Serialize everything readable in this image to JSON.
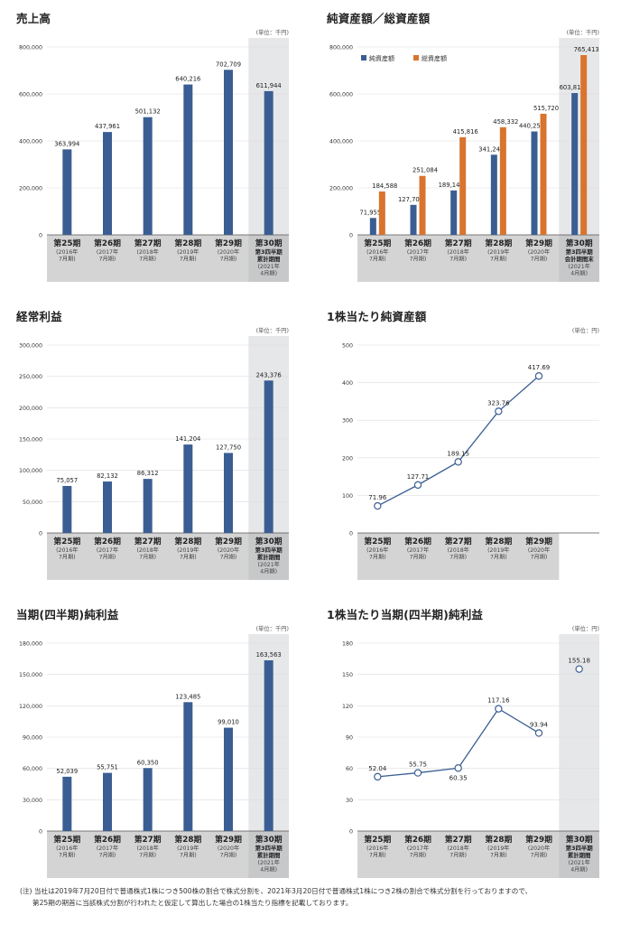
{
  "colors": {
    "bar": "#3a5e93",
    "total": "#d9742e",
    "band": "#d4d4d4",
    "highlight": "#e6e7e8",
    "line": "#3a5e93",
    "grid": "#dddddd"
  },
  "chart_data": [
    {
      "id": "sales",
      "type": "bar",
      "title": "売上高",
      "unit": "(単位：千円)",
      "ylim": [
        0,
        800000
      ],
      "yticks": [
        "0",
        "200,000",
        "400,000",
        "600,000",
        "800,000"
      ],
      "categories": [
        {
          "name": "第25期",
          "sub": [
            "(2016年",
            "7月期)"
          ]
        },
        {
          "name": "第26期",
          "sub": [
            "(2017年",
            "7月期)"
          ]
        },
        {
          "name": "第27期",
          "sub": [
            "(2018年",
            "7月期)"
          ]
        },
        {
          "name": "第28期",
          "sub": [
            "(2019年",
            "7月期)"
          ]
        },
        {
          "name": "第29期",
          "sub": [
            "(2020年",
            "7月期)"
          ]
        },
        {
          "name": "第30期",
          "sub2": [
            "第3四半期",
            "累計期間"
          ],
          "sub": [
            "(2021年",
            "4月期)"
          ]
        }
      ],
      "series": [
        {
          "name": "売上高",
          "values": [
            363994,
            437961,
            501132,
            640216,
            702709,
            611944
          ],
          "labels": [
            "363,994",
            "437,961",
            "501,132",
            "640,216",
            "702,709",
            "611,944"
          ]
        }
      ],
      "highlight_last": true
    },
    {
      "id": "assets",
      "type": "bar",
      "title": "純資産額／総資産額",
      "unit": "(単位：千円)",
      "ylim": [
        0,
        800000
      ],
      "yticks": [
        "0",
        "200,000",
        "400,000",
        "600,000",
        "800,000"
      ],
      "legend": [
        "純資産額",
        "総資産額"
      ],
      "categories": [
        {
          "name": "第25期",
          "sub": [
            "(2016年",
            "7月期)"
          ]
        },
        {
          "name": "第26期",
          "sub": [
            "(2017年",
            "7月期)"
          ]
        },
        {
          "name": "第27期",
          "sub": [
            "(2018年",
            "7月期)"
          ]
        },
        {
          "name": "第28期",
          "sub": [
            "(2019年",
            "7月期)"
          ]
        },
        {
          "name": "第29期",
          "sub": [
            "(2020年",
            "7月期)"
          ]
        },
        {
          "name": "第30期",
          "sub2": [
            "第3四半期",
            "会計期間末"
          ],
          "sub": [
            "(2021年",
            "4月期)"
          ]
        }
      ],
      "series": [
        {
          "name": "純資産額",
          "values": [
            71955,
            127706,
            189149,
            341242,
            440252,
            603816
          ],
          "labels": [
            "71,955",
            "127,706",
            "189,149",
            "341,242",
            "440,252",
            "603,816"
          ]
        },
        {
          "name": "総資産額",
          "values": [
            184588,
            251084,
            415816,
            458332,
            515720,
            765413
          ],
          "labels": [
            "184,588",
            "251,084",
            "415,816",
            "458,332",
            "515,720",
            "765,413"
          ]
        }
      ],
      "highlight_last": true
    },
    {
      "id": "ordinary",
      "type": "bar",
      "title": "経常利益",
      "unit": "(単位：千円)",
      "ylim": [
        0,
        300000
      ],
      "yticks": [
        "0",
        "50,000",
        "100,000",
        "150,000",
        "200,000",
        "250,000",
        "300,000"
      ],
      "categories": [
        {
          "name": "第25期",
          "sub": [
            "(2016年",
            "7月期)"
          ]
        },
        {
          "name": "第26期",
          "sub": [
            "(2017年",
            "7月期)"
          ]
        },
        {
          "name": "第27期",
          "sub": [
            "(2018年",
            "7月期)"
          ]
        },
        {
          "name": "第28期",
          "sub": [
            "(2019年",
            "7月期)"
          ]
        },
        {
          "name": "第29期",
          "sub": [
            "(2020年",
            "7月期)"
          ]
        },
        {
          "name": "第30期",
          "sub2": [
            "第3四半期",
            "累計期間"
          ],
          "sub": [
            "(2021年",
            "4月期)"
          ]
        }
      ],
      "series": [
        {
          "name": "経常利益",
          "values": [
            75057,
            82132,
            86312,
            141204,
            127750,
            243376
          ],
          "labels": [
            "75,057",
            "82,132",
            "86,312",
            "141,204",
            "127,750",
            "243,376"
          ]
        }
      ],
      "highlight_last": true
    },
    {
      "id": "bps",
      "type": "line",
      "title": "1株当たり純資産額",
      "unit": "(単位：円)",
      "ylim": [
        0,
        500
      ],
      "yticks": [
        "0",
        "100",
        "200",
        "300",
        "400",
        "500"
      ],
      "slots": 6,
      "categories": [
        {
          "name": "第25期",
          "sub": [
            "(2016年",
            "7月期)"
          ]
        },
        {
          "name": "第26期",
          "sub": [
            "(2017年",
            "7月期)"
          ]
        },
        {
          "name": "第27期",
          "sub": [
            "(2018年",
            "7月期)"
          ]
        },
        {
          "name": "第28期",
          "sub": [
            "(2019年",
            "7月期)"
          ]
        },
        {
          "name": "第29期",
          "sub": [
            "(2020年",
            "7月期)"
          ]
        }
      ],
      "series": [
        {
          "name": "1株当たり純資産額",
          "values": [
            71.96,
            127.71,
            189.15,
            323.76,
            417.69
          ],
          "labels": [
            "71.96",
            "127.71",
            "189.15",
            "323.76",
            "417.69"
          ],
          "label_pos": [
            "above",
            "above",
            "above",
            "above",
            "above"
          ]
        }
      ],
      "highlight_last": false
    },
    {
      "id": "netincome",
      "type": "bar",
      "title": "当期(四半期)純利益",
      "unit": "(単位：千円)",
      "ylim": [
        0,
        180000
      ],
      "yticks": [
        "0",
        "30,000",
        "60,000",
        "90,000",
        "120,000",
        "150,000",
        "180,000"
      ],
      "categories": [
        {
          "name": "第25期",
          "sub": [
            "(2016年",
            "7月期)"
          ]
        },
        {
          "name": "第26期",
          "sub": [
            "(2017年",
            "7月期)"
          ]
        },
        {
          "name": "第27期",
          "sub": [
            "(2018年",
            "7月期)"
          ]
        },
        {
          "name": "第28期",
          "sub": [
            "(2019年",
            "7月期)"
          ]
        },
        {
          "name": "第29期",
          "sub": [
            "(2020年",
            "7月期)"
          ]
        },
        {
          "name": "第30期",
          "sub2": [
            "第3四半期",
            "累計期間"
          ],
          "sub": [
            "(2021年",
            "4月期)"
          ]
        }
      ],
      "series": [
        {
          "name": "当期純利益",
          "values": [
            52039,
            55751,
            60350,
            123485,
            99010,
            163563
          ],
          "labels": [
            "52,039",
            "55,751",
            "60,350",
            "123,485",
            "99,010",
            "163,563"
          ]
        }
      ],
      "highlight_last": true
    },
    {
      "id": "eps",
      "type": "line",
      "title": "1株当たり当期(四半期)純利益",
      "unit": "(単位：円)",
      "ylim": [
        0,
        180
      ],
      "yticks": [
        "0",
        "30",
        "60",
        "90",
        "120",
        "150",
        "180"
      ],
      "slots": 6,
      "categories": [
        {
          "name": "第25期",
          "sub": [
            "(2016年",
            "7月期)"
          ]
        },
        {
          "name": "第26期",
          "sub": [
            "(2017年",
            "7月期)"
          ]
        },
        {
          "name": "第27期",
          "sub": [
            "(2018年",
            "7月期)"
          ]
        },
        {
          "name": "第28期",
          "sub": [
            "(2019年",
            "7月期)"
          ]
        },
        {
          "name": "第29期",
          "sub": [
            "(2020年",
            "7月期)"
          ]
        },
        {
          "name": "第30期",
          "sub2": [
            "第3四半期",
            "累計期間"
          ],
          "sub": [
            "(2021年",
            "4月期)"
          ]
        }
      ],
      "series": [
        {
          "name": "1株当たり当期純利益",
          "values": [
            52.04,
            55.75,
            60.35,
            117.16,
            93.94,
            155.18
          ],
          "labels": [
            "52.04",
            "55.75",
            "60.35",
            "117.16",
            "93.94",
            "155.18"
          ],
          "label_pos": [
            "above",
            "above",
            "below",
            "above",
            "above",
            "above"
          ],
          "connect": 5
        }
      ],
      "highlight_last": true
    }
  ],
  "footnote": [
    "(注) 当社は2019年7月20日付で普通株式1株につき500株の割合で株式分割を、2021年3月20日付で普通株式1株につき2株の割合で株式分割を行っておりますので、",
    "第25期の期首に当該株式分割が行われたと仮定して算出した場合の1株当たり指標を記載しております。"
  ]
}
